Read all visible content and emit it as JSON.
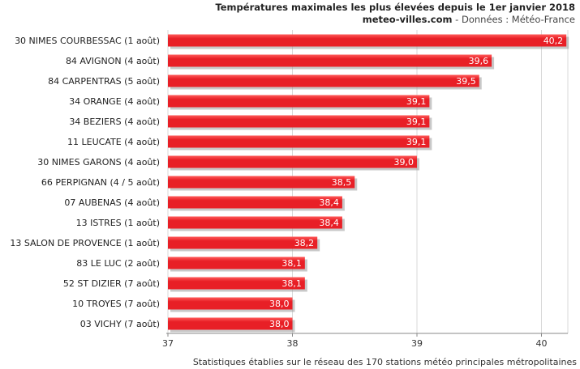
{
  "header": {
    "title": "Températures maximales les plus élevées depuis le 1er janvier 2018",
    "site": "meteo-villes.com",
    "source": " - Données : Météo-France"
  },
  "footer": {
    "note": "Statistiques établies sur le réseau des 170 stations météo principales métropolitaines"
  },
  "colors": {
    "bar": "#e81f26",
    "bar_highlight": "#ff5a5a",
    "grid": "#d8d8d8",
    "axis": "#888888",
    "shadow": "#9a9a9a"
  },
  "chart_data": {
    "type": "bar",
    "orientation": "horizontal",
    "title": "Températures maximales les plus élevées depuis le 1er janvier 2018",
    "categories": [
      "30 NIMES COURBESSAC (1 août)",
      "84 AVIGNON (4 août)",
      "84 CARPENTRAS (5 août)",
      "34 ORANGE (4 août)",
      "34 BEZIERS (4 août)",
      "11 LEUCATE (4 août)",
      "30 NIMES GARONS (4 août)",
      "66 PERPIGNAN (4 / 5 août)",
      "07 AUBENAS (4 août)",
      "13 ISTRES (1 août)",
      "13 SALON DE PROVENCE (1 août)",
      "83 LE LUC (2 août)",
      "52 ST DIZIER (7 août)",
      "10 TROYES (7 août)",
      "03 VICHY (7 août)"
    ],
    "values": [
      40.2,
      39.6,
      39.5,
      39.1,
      39.1,
      39.1,
      39.0,
      38.5,
      38.4,
      38.4,
      38.2,
      38.1,
      38.1,
      38.0,
      38.0
    ],
    "value_labels": [
      "40,2",
      "39,6",
      "39,5",
      "39,1",
      "39,1",
      "39,1",
      "39,0",
      "38,5",
      "38,4",
      "38,4",
      "38,2",
      "38,1",
      "38,1",
      "38,0",
      "38,0"
    ],
    "xlim": [
      37,
      40.2
    ],
    "xticks": [
      37,
      38,
      39,
      40
    ],
    "xtick_labels": [
      "37",
      "38",
      "39",
      "40"
    ],
    "grid": true,
    "legend": "none"
  }
}
